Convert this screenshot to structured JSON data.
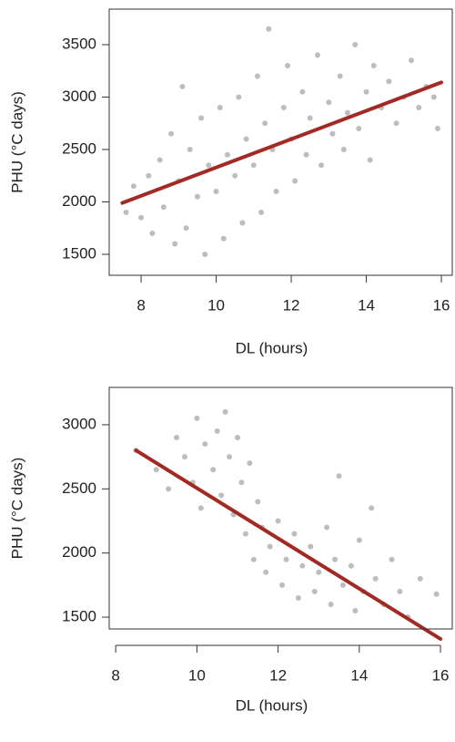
{
  "chart_data": [
    {
      "type": "scatter",
      "x_label": "DL (hours)",
      "y_label": "PHU (°C days)",
      "xlim": [
        7.15,
        16.29
      ],
      "xticks": [
        8,
        10,
        12,
        14,
        16
      ],
      "ylim": [
        1300,
        3839
      ],
      "yticks": [
        1500,
        2000,
        2500,
        3000,
        3500
      ],
      "points": {
        "color": "#bdbdbd",
        "x": [
          7.6,
          7.8,
          8.0,
          8.2,
          8.3,
          8.5,
          8.6,
          8.8,
          8.9,
          9.0,
          9.1,
          9.2,
          9.3,
          9.5,
          9.6,
          9.7,
          9.8,
          10.0,
          10.1,
          10.2,
          10.3,
          10.5,
          10.6,
          10.7,
          10.8,
          11.0,
          11.1,
          11.2,
          11.3,
          11.4,
          11.5,
          11.6,
          11.8,
          11.9,
          12.0,
          12.1,
          12.3,
          12.4,
          12.5,
          12.7,
          12.8,
          13.0,
          13.1,
          13.3,
          13.4,
          13.5,
          13.7,
          13.8,
          14.0,
          14.1,
          14.2,
          14.4,
          14.6,
          14.8,
          15.0,
          15.2,
          15.4,
          15.6,
          15.8,
          15.9
        ],
        "y": [
          1900,
          2150,
          1850,
          2250,
          1700,
          2400,
          1950,
          2650,
          1600,
          2200,
          3100,
          1750,
          2500,
          2050,
          2800,
          1500,
          2350,
          2100,
          2900,
          1650,
          2450,
          2250,
          3000,
          1800,
          2600,
          2350,
          3200,
          1900,
          2750,
          3650,
          2500,
          2100,
          2900,
          3300,
          2600,
          2200,
          3050,
          2450,
          2800,
          3400,
          2350,
          2950,
          2650,
          3200,
          2500,
          2850,
          3500,
          2700,
          3050,
          2400,
          3300,
          2900,
          3150,
          2750,
          3000,
          3350,
          2900,
          3100,
          3000,
          2700
        ]
      },
      "fit_line": {
        "color": "#a32a24",
        "x": [
          7.5,
          16
        ],
        "y": [
          1990,
          3140
        ]
      }
    },
    {
      "type": "scatter",
      "x_label": "DL (hours)",
      "y_label": "PHU (°C days)",
      "xlim": [
        7.84,
        16.29
      ],
      "xticks": [
        8,
        10,
        12,
        14,
        16
      ],
      "ylim": [
        1408,
        3291
      ],
      "yticks": [
        1500,
        2000,
        2500,
        3000
      ],
      "points": {
        "color": "#bdbdbd",
        "x": [
          8.5,
          9.0,
          9.3,
          9.5,
          9.7,
          9.9,
          10.0,
          10.1,
          10.2,
          10.4,
          10.5,
          10.6,
          10.7,
          10.8,
          10.9,
          11.0,
          11.1,
          11.2,
          11.3,
          11.4,
          11.5,
          11.6,
          11.7,
          11.8,
          12.0,
          12.1,
          12.2,
          12.4,
          12.5,
          12.6,
          12.8,
          12.9,
          13.0,
          13.2,
          13.3,
          13.4,
          13.5,
          13.6,
          13.8,
          13.9,
          14.0,
          14.1,
          14.3,
          14.4,
          14.6,
          14.8,
          15.0,
          15.2,
          15.5,
          15.9
        ],
        "y": [
          2800,
          2650,
          2500,
          2900,
          2750,
          2550,
          3050,
          2350,
          2850,
          2650,
          2950,
          2450,
          3100,
          2750,
          2300,
          2900,
          2550,
          2150,
          2700,
          1950,
          2400,
          2200,
          1850,
          2050,
          2250,
          1750,
          1950,
          2150,
          1650,
          1900,
          2050,
          1700,
          1850,
          2200,
          1600,
          1950,
          2600,
          1750,
          1900,
          1550,
          2100,
          1700,
          2350,
          1800,
          1600,
          1950,
          1700,
          1500,
          1800,
          1680
        ]
      },
      "fit_line": {
        "color": "#a32a24",
        "x": [
          8.5,
          16
        ],
        "y": [
          2800,
          1330
        ]
      }
    }
  ]
}
